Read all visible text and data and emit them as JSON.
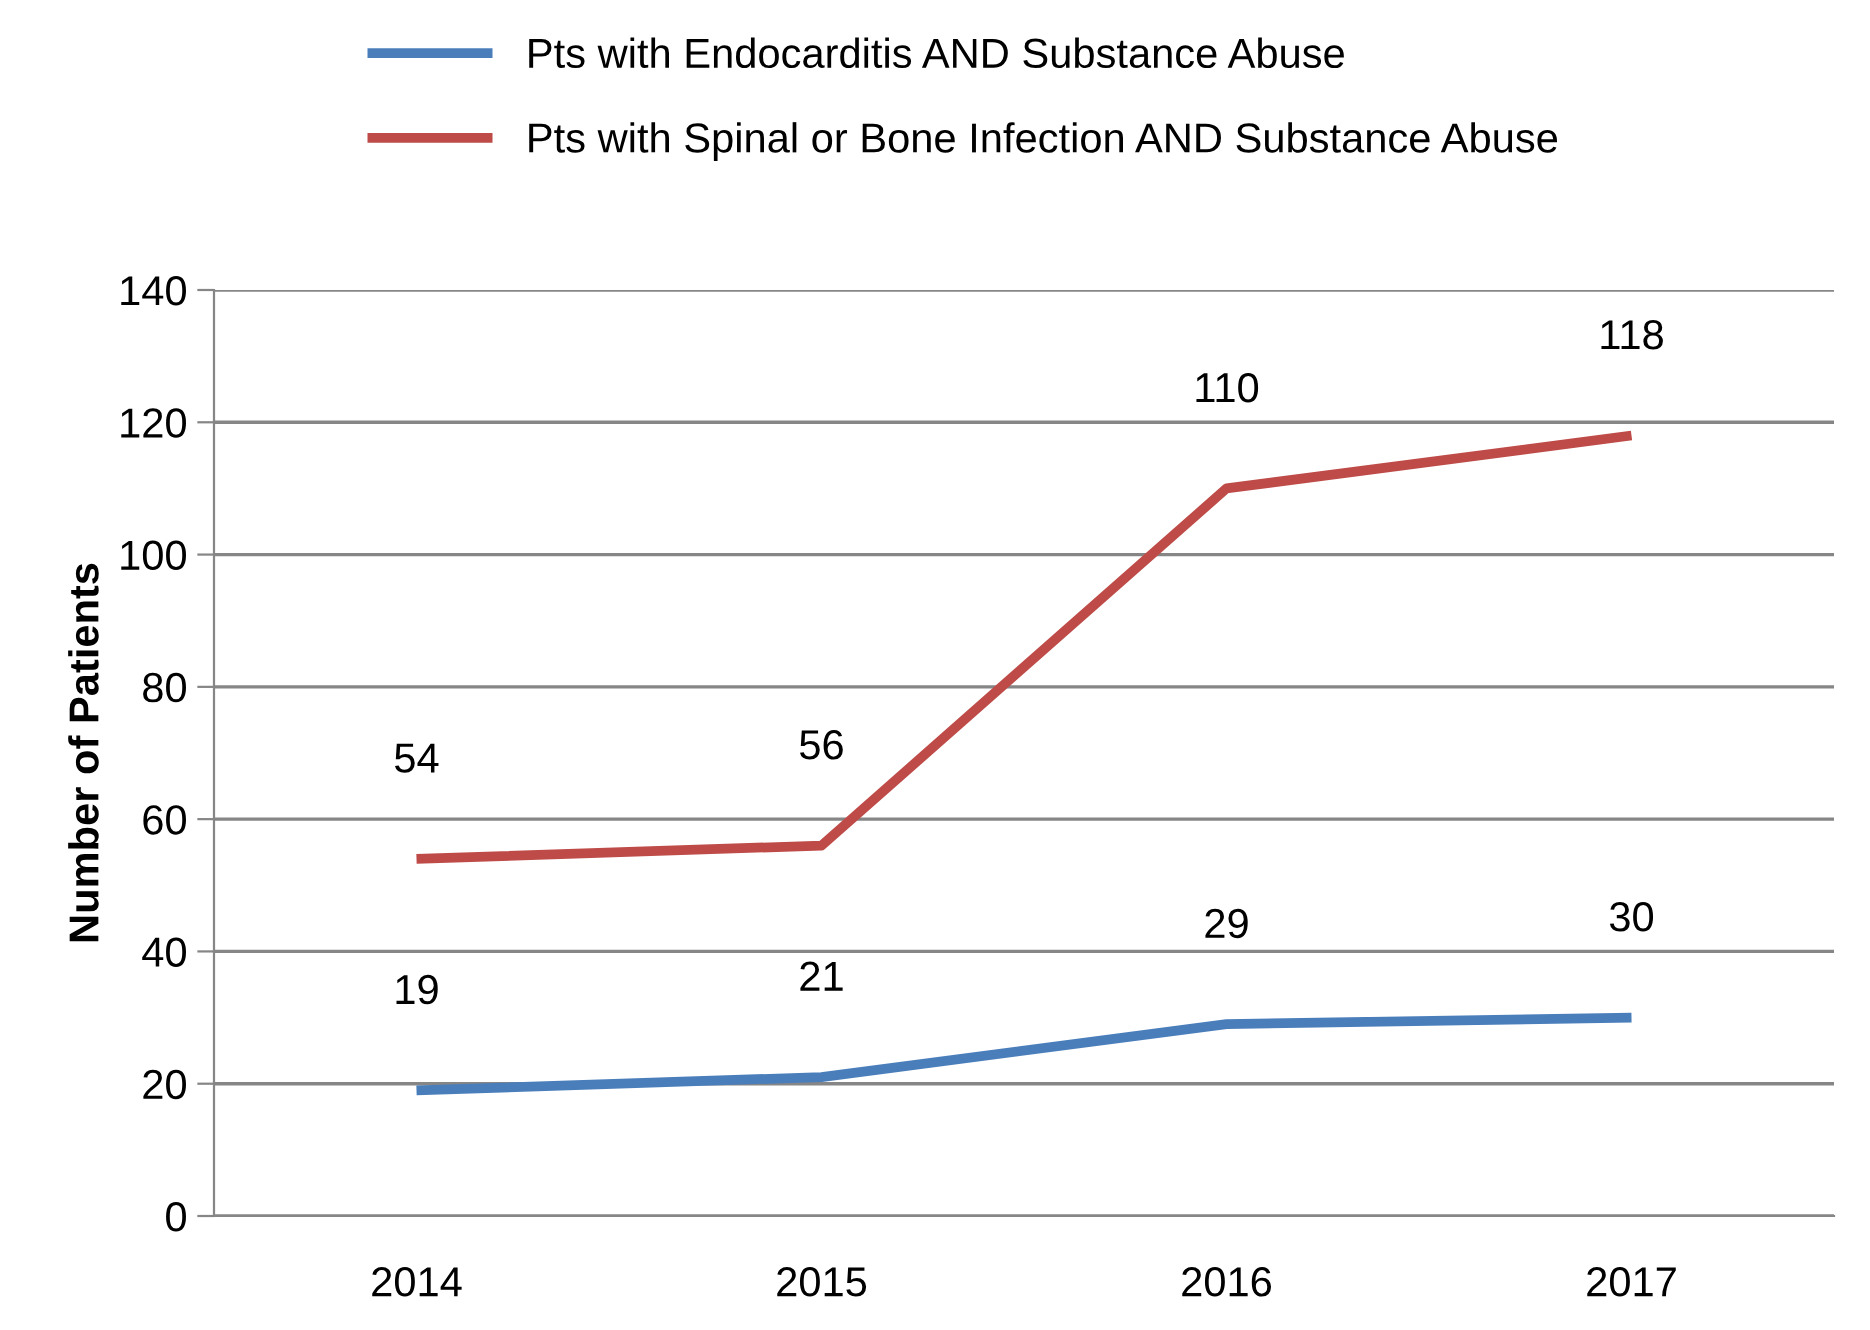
{
  "chart_data": {
    "type": "line",
    "ylabel": "Number of Patients",
    "categories": [
      "2014",
      "2015",
      "2016",
      "2017"
    ],
    "series": [
      {
        "name": "Pts with Endocarditis AND Substance Abuse",
        "color": "#4a7ebb",
        "values": [
          19,
          21,
          29,
          30
        ]
      },
      {
        "name": "Pts with Spinal or Bone Infection AND Substance Abuse",
        "color": "#be4b48",
        "values": [
          54,
          56,
          110,
          118
        ]
      }
    ],
    "ylim": [
      0,
      140
    ],
    "yticks": [
      0,
      20,
      40,
      60,
      80,
      100,
      120,
      140
    ],
    "grid": "y",
    "legend": "top",
    "data_labels": true,
    "marker": "none",
    "line_style": "solid"
  }
}
